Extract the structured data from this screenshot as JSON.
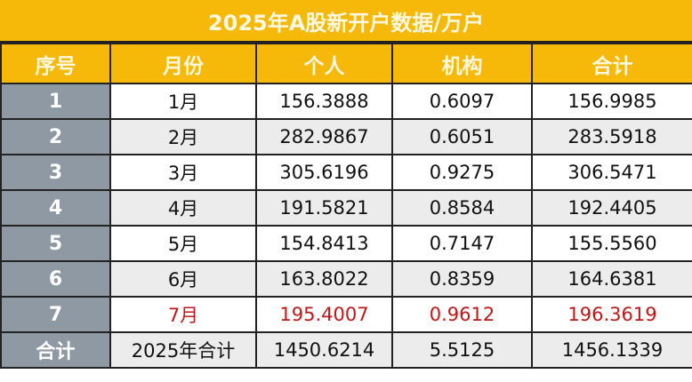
{
  "title": "2025年A股新开户数据/万户",
  "columns": [
    "序号",
    "月份",
    "个人",
    "机构",
    "合计"
  ],
  "rows": [
    {
      "idx": "1",
      "month": "1月",
      "personal": "156.3888",
      "institution": "0.6097",
      "total": "156.9985"
    },
    {
      "idx": "2",
      "month": "2月",
      "personal": "282.9867",
      "institution": "0.6051",
      "total": "283.5918"
    },
    {
      "idx": "3",
      "month": "3月",
      "personal": "305.6196",
      "institution": "0.9275",
      "total": "306.5471"
    },
    {
      "idx": "4",
      "month": "4月",
      "personal": "191.5821",
      "institution": "0.8584",
      "total": "192.4405"
    },
    {
      "idx": "5",
      "month": "5月",
      "personal": "154.8413",
      "institution": "0.7147",
      "total": "155.5560"
    },
    {
      "idx": "6",
      "month": "6月",
      "personal": "163.8022",
      "institution": "0.8359",
      "total": "164.6381"
    },
    {
      "idx": "7",
      "month": "7月",
      "personal": "195.4007",
      "institution": "0.9612",
      "total": "196.3619"
    }
  ],
  "summary": {
    "idx": "合计",
    "month": "2025年合计",
    "personal": "1450.6214",
    "institution": "5.5125",
    "total": "1456.1339"
  },
  "colors": {
    "header": "#f6b90a",
    "index_column": "#8f99a3",
    "highlight_text": "#c01818"
  }
}
